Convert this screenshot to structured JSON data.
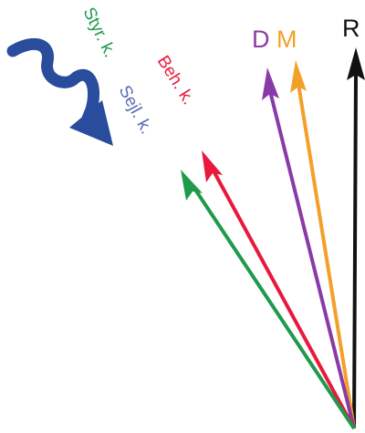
{
  "labels": {
    "r": "R",
    "d": "D",
    "m": "M",
    "beh": "Beh. k.",
    "sejl": "Sejl. k.",
    "styr": "Styr. k."
  },
  "colors": {
    "r": "#111111",
    "d": "#8a3aa8",
    "m": "#f4a028",
    "beh": "#e8193c",
    "sejl": "#5b6bb5",
    "styr": "#1f9a4a",
    "wind": "#2a4c9c"
  },
  "icons": {
    "wind": "wind-arrow-icon"
  }
}
